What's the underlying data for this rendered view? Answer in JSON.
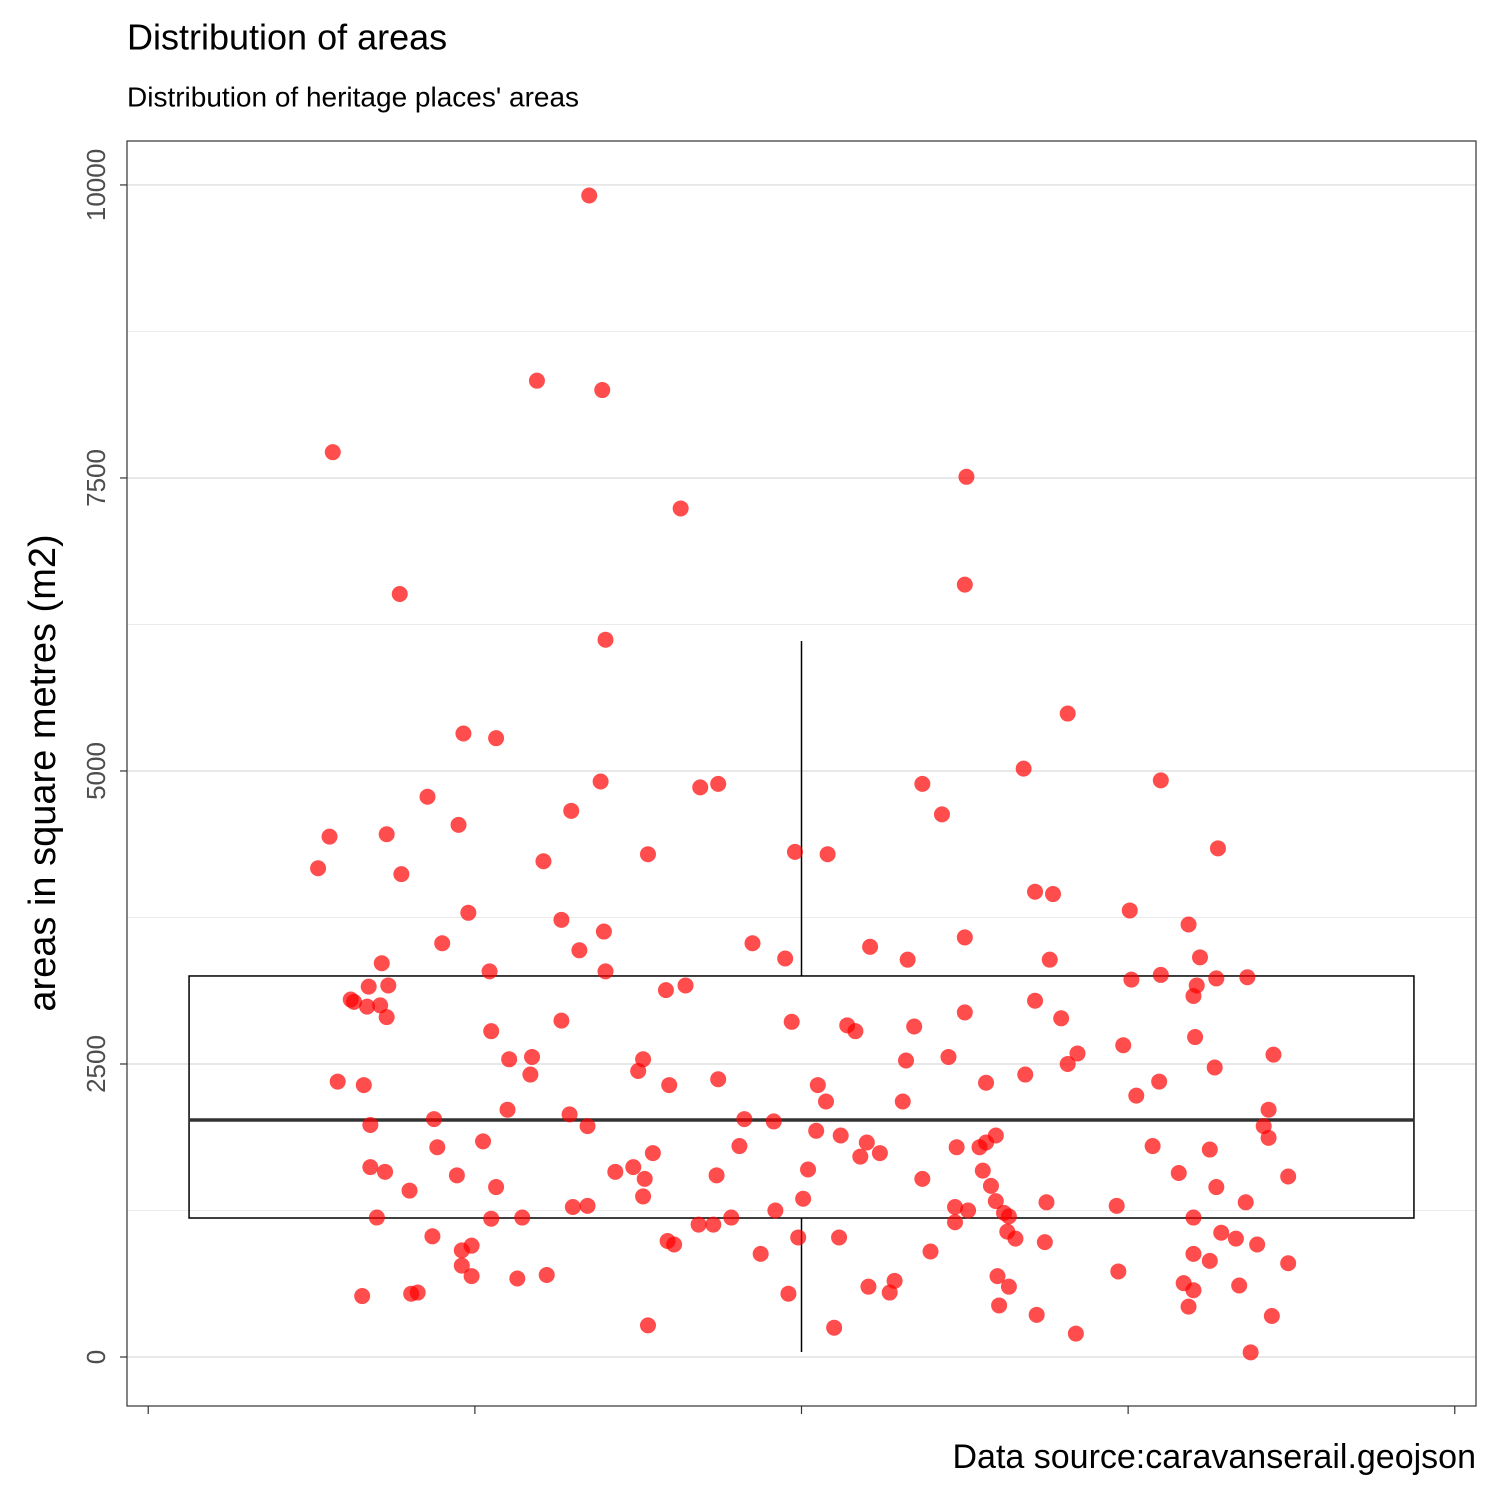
{
  "chart_data": {
    "type": "box",
    "title": "Distribution of areas",
    "subtitle": "Distribution of heritage places' areas",
    "y_label": "areas in square metres (m2)",
    "caption": "Data source:caravanserail.geojson",
    "ylim": [
      -418,
      10375
    ],
    "yticks": [
      0,
      2500,
      5000,
      7500,
      10000
    ],
    "y_minor_ticks": [
      1250,
      3750,
      6250,
      8750
    ],
    "xlim": [
      -0.413,
      0.413
    ],
    "xticks": [
      -0.4,
      -0.2,
      0,
      0.2,
      0.4
    ],
    "grid": true,
    "box": {
      "x": 0,
      "width": 0.75,
      "whisker_low": 43,
      "q1": 1186,
      "median": 2022,
      "q3": 3251,
      "whisker_high": 6109,
      "color": "#000000",
      "median_color": "#333333"
    },
    "points": {
      "color": "#ff0000",
      "opacity": 0.7,
      "x": [
        -0.13,
        -0.162,
        -0.122,
        -0.287,
        0.101,
        -0.074,
        0.1,
        -0.246,
        -0.12,
        0.163,
        -0.207,
        -0.187,
        0.136,
        0.22,
        -0.123,
        -0.051,
        -0.062,
        0.074,
        -0.229,
        0.086,
        -0.141,
        -0.21,
        -0.289,
        -0.254,
        0.255,
        -0.004,
        0.016,
        -0.094,
        -0.158,
        -0.296,
        -0.245,
        0.143,
        0.154,
        -0.204,
        0.201,
        -0.147,
        0.237,
        -0.121,
        0.1,
        -0.22,
        -0.03,
        -0.136,
        0.042,
        -0.01,
        0.244,
        0.065,
        0.152,
        -0.257,
        -0.191,
        -0.12,
        0.22,
        0.273,
        0.254,
        0.202,
        -0.253,
        -0.071,
        0.242,
        -0.265,
        -0.083,
        0.24,
        -0.276,
        -0.274,
        0.143,
        -0.266,
        -0.258,
        0.1,
        -0.254,
        0.159,
        -0.147,
        -0.006,
        0.028,
        0.069,
        0.033,
        -0.19,
        0.241,
        0.197,
        0.169,
        0.289,
        -0.165,
        0.09,
        -0.179,
        -0.097,
        0.064,
        0.163,
        0.253,
        -0.1,
        -0.166,
        0.137,
        -0.051,
        -0.284,
        0.219,
        -0.268,
        -0.081,
        0.113,
        0.01,
        0.205,
        0.015,
        0.062,
        0.286,
        -0.18,
        -0.142,
        -0.225,
        -0.035,
        -0.017,
        -0.264,
        -0.131,
        0.283,
        0.009,
        0.024,
        0.119,
        0.286,
        -0.195,
        0.04,
        0.113,
        -0.223,
        -0.038,
        0.095,
        0.215,
        0.109,
        0.25,
        -0.091,
        0.048,
        0.036,
        -0.264,
        -0.103,
        0.004,
        -0.255,
        -0.114,
        0.111,
        0.231,
        0.298,
        -0.052,
        -0.211,
        -0.096,
        0.074,
        0.116,
        -0.187,
        0.254,
        -0.24,
        -0.097,
        0.119,
        0.15,
        0.272,
        0.001,
        -0.14,
        -0.131,
        0.094,
        0.193,
        0.102,
        -0.016,
        0.124,
        0.127,
        -0.26,
        -0.171,
        -0.19,
        -0.043,
        0.24,
        0.094,
        -0.063,
        -0.054,
        0.126,
        0.257,
        -0.226,
        -0.002,
        0.131,
        0.023,
        0.266,
        -0.082,
        -0.078,
        0.149,
        -0.202,
        0.279,
        -0.208,
        0.079,
        -0.025,
        0.24,
        0.25,
        0.298,
        -0.208,
        0.194,
        -0.202,
        -0.156,
        -0.174,
        0.12,
        0.057,
        0.234,
        0.041,
        0.268,
        0.127,
        0.24,
        -0.235,
        -0.239,
        0.054,
        -0.008,
        -0.269,
        0.121,
        0.237,
        0.144,
        0.288,
        -0.094,
        0.02,
        0.168,
        0.275
      ],
      "values": [
        9910,
        8330,
        8250,
        7720,
        7510,
        7240,
        6590,
        6510,
        6120,
        5490,
        5320,
        5280,
        5020,
        4920,
        4910,
        4890,
        4860,
        4890,
        4780,
        4630,
        4660,
        4540,
        4440,
        4460,
        4340,
        4310,
        4290,
        4290,
        4230,
        4170,
        4120,
        3970,
        3950,
        3790,
        3810,
        3730,
        3690,
        3630,
        3580,
        3530,
        3530,
        3470,
        3500,
        3400,
        3410,
        3390,
        3390,
        3360,
        3290,
        3290,
        3260,
        3240,
        3230,
        3220,
        3170,
        3170,
        3170,
        3160,
        3130,
        3080,
        3050,
        3030,
        3040,
        2990,
        3000,
        2940,
        2900,
        2890,
        2870,
        2860,
        2830,
        2820,
        2780,
        2780,
        2730,
        2660,
        2590,
        2580,
        2560,
        2560,
        2540,
        2540,
        2530,
        2500,
        2470,
        2440,
        2410,
        2410,
        2370,
        2350,
        2350,
        2320,
        2320,
        2340,
        2320,
        2230,
        2180,
        2180,
        2110,
        2110,
        2070,
        2030,
        2030,
        2010,
        1980,
        1970,
        1970,
        1930,
        1890,
        1890,
        1870,
        1840,
        1830,
        1830,
        1790,
        1800,
        1790,
        1800,
        1790,
        1770,
        1740,
        1740,
        1710,
        1620,
        1620,
        1600,
        1580,
        1580,
        1590,
        1570,
        1540,
        1550,
        1550,
        1520,
        1520,
        1460,
        1450,
        1450,
        1420,
        1370,
        1330,
        1320,
        1320,
        1350,
        1280,
        1290,
        1280,
        1290,
        1250,
        1250,
        1230,
        1200,
        1190,
        1190,
        1180,
        1190,
        1190,
        1150,
        1130,
        1130,
        1070,
        1060,
        1030,
        1020,
        1010,
        1020,
        1010,
        990,
        960,
        980,
        950,
        960,
        910,
        900,
        880,
        880,
        820,
        800,
        780,
        730,
        690,
        700,
        670,
        690,
        650,
        630,
        600,
        610,
        600,
        570,
        550,
        540,
        550,
        540,
        520,
        440,
        430,
        360,
        350,
        270,
        250,
        200,
        40
      ]
    }
  }
}
